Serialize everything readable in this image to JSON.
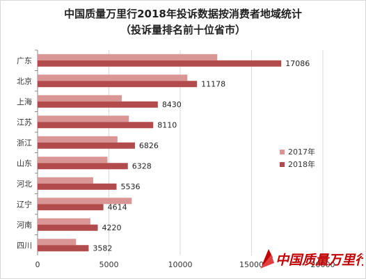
{
  "chart_data": {
    "type": "bar",
    "orientation": "horizontal",
    "title": "中国质量万里行2018年投诉数据按消费者地域统计",
    "subtitle": "（投诉量排名前十位省市）",
    "categories": [
      "广东",
      "北京",
      "上海",
      "江苏",
      "浙江",
      "山东",
      "河北",
      "辽宁",
      "河南",
      "四川"
    ],
    "series": [
      {
        "name": "2017年",
        "color": "#d99694",
        "values": [
          12600,
          10500,
          5900,
          6400,
          5600,
          4900,
          3900,
          6600,
          3700,
          2700
        ]
      },
      {
        "name": "2018年",
        "color": "#b24b4b",
        "values": [
          17086,
          11178,
          8430,
          8110,
          6826,
          6328,
          5536,
          4614,
          4220,
          3582
        ]
      }
    ],
    "data_labels": [
      "17086",
      "11178",
      "8430",
      "8110",
      "6826",
      "6328",
      "5536",
      "4614",
      "4220",
      "3582"
    ],
    "xlim": [
      0,
      20000
    ],
    "xticks": [
      0,
      5000,
      10000,
      15000,
      20000
    ],
    "xtick_labels": [
      "0",
      "5000",
      "10000",
      "15000",
      "20000"
    ],
    "grid": true,
    "legend_position": "right"
  },
  "watermark_text": "中国质量万里行",
  "colors": {
    "accent": "#c00000",
    "grid": "#d9d9d9",
    "axis": "#888888"
  }
}
